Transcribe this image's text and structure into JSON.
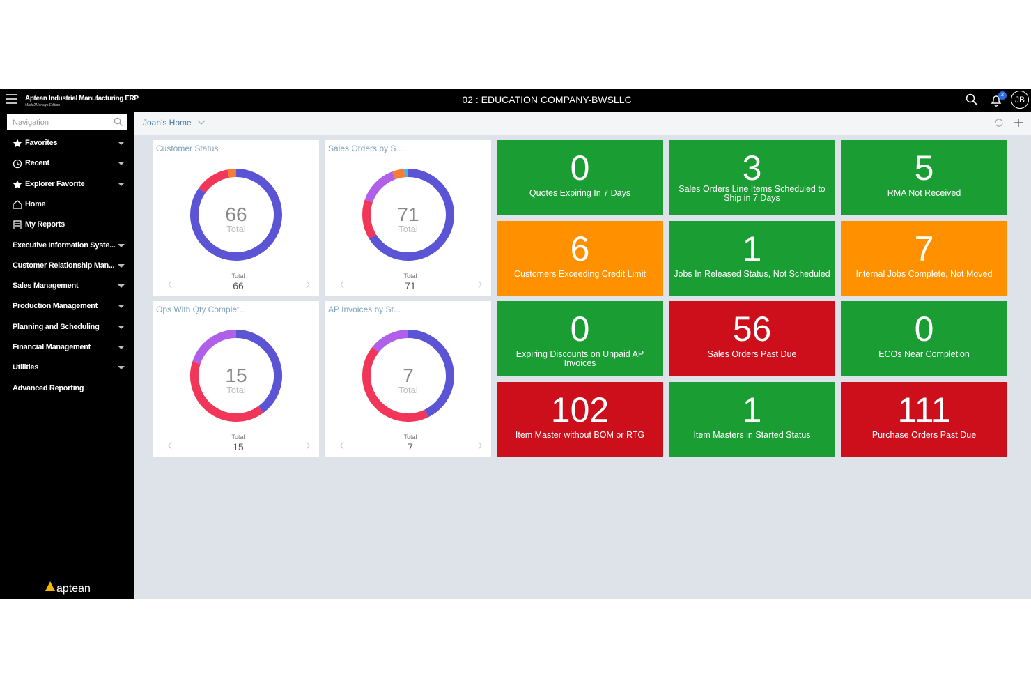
{
  "header": {
    "app_title": "Aptean Industrial Manufacturing ERP",
    "app_edition": "Made2Manage Edition",
    "company": "02 : EDUCATION COMPANY-BWSLLC",
    "notification_count": 2,
    "user_initials": "JB"
  },
  "navigation": {
    "search_placeholder": "Navigation",
    "logo": "aptean",
    "items": [
      {
        "label": "Favorites",
        "expandable": true
      },
      {
        "label": "Recent",
        "expandable": true
      },
      {
        "label": "Explorer Favorite",
        "expandable": true
      },
      {
        "label": "Home",
        "expandable": false
      },
      {
        "label": "My Reports",
        "expandable": false
      },
      {
        "label": "Executive Information Syste...",
        "expandable": true
      },
      {
        "label": "Customer Relationship Man...",
        "expandable": true
      },
      {
        "label": "Sales Management",
        "expandable": true
      },
      {
        "label": "Production Management",
        "expandable": true
      },
      {
        "label": "Planning and Scheduling",
        "expandable": true
      },
      {
        "label": "Financial Management",
        "expandable": true
      },
      {
        "label": "Utilities",
        "expandable": true
      },
      {
        "label": "Advanced Reporting",
        "expandable": false
      }
    ]
  },
  "dashboard": {
    "title": "Joan's Home",
    "total_label": "Total",
    "widgets": [
      {
        "title": "Customer Status",
        "total": 66,
        "segments": [
          {
            "value": 56,
            "color": "#5b55d6"
          },
          {
            "value": 8,
            "color": "#f2365a"
          },
          {
            "value": 2,
            "color": "#f57c3a"
          }
        ]
      },
      {
        "title": "Sales Orders by S...",
        "total": 71,
        "segments": [
          {
            "value": 47,
            "color": "#5b55d6"
          },
          {
            "value": 10,
            "color": "#f2365a"
          },
          {
            "value": 10,
            "color": "#b060e8"
          },
          {
            "value": 3,
            "color": "#f57c3a"
          },
          {
            "value": 1,
            "color": "#3db6e8"
          }
        ]
      },
      {
        "title": "Ops With Qty Complet...",
        "total": 15,
        "segments": [
          {
            "value": 6,
            "color": "#5b55d6"
          },
          {
            "value": 6,
            "color": "#f2365a"
          },
          {
            "value": 3,
            "color": "#b060e8"
          }
        ]
      },
      {
        "title": "AP Invoices by St...",
        "total": 7,
        "segments": [
          {
            "value": 3,
            "color": "#5b55d6"
          },
          {
            "value": 3,
            "color": "#f2365a"
          },
          {
            "value": 1,
            "color": "#b060e8"
          }
        ]
      }
    ],
    "tiles": [
      {
        "value": 0,
        "label": "Quotes Expiring In 7 Days",
        "color": "#1a9e33"
      },
      {
        "value": 3,
        "label": "Sales Orders Line Items Scheduled to Ship in 7 Days",
        "color": "#1a9e33"
      },
      {
        "value": 5,
        "label": "RMA Not Received",
        "color": "#1a9e33"
      },
      {
        "value": 6,
        "label": "Customers Exceeding Credit Limit",
        "color": "#ff9100"
      },
      {
        "value": 1,
        "label": "Jobs In Released Status, Not Scheduled",
        "color": "#1a9e33"
      },
      {
        "value": 7,
        "label": "Internal Jobs Complete, Not Moved",
        "color": "#ff9100"
      },
      {
        "value": 0,
        "label": "Expiring Discounts on Unpaid AP Invoices",
        "color": "#1a9e33"
      },
      {
        "value": 56,
        "label": "Sales Orders Past Due",
        "color": "#cc0f1a"
      },
      {
        "value": 0,
        "label": "ECOs Near Completion",
        "color": "#1a9e33"
      },
      {
        "value": 102,
        "label": "Item Master without BOM or RTG",
        "color": "#cc0f1a"
      },
      {
        "value": 1,
        "label": "Item Masters in Started Status",
        "color": "#1a9e33"
      },
      {
        "value": 111,
        "label": "Purchase Orders Past Due",
        "color": "#cc0f1a"
      }
    ]
  }
}
